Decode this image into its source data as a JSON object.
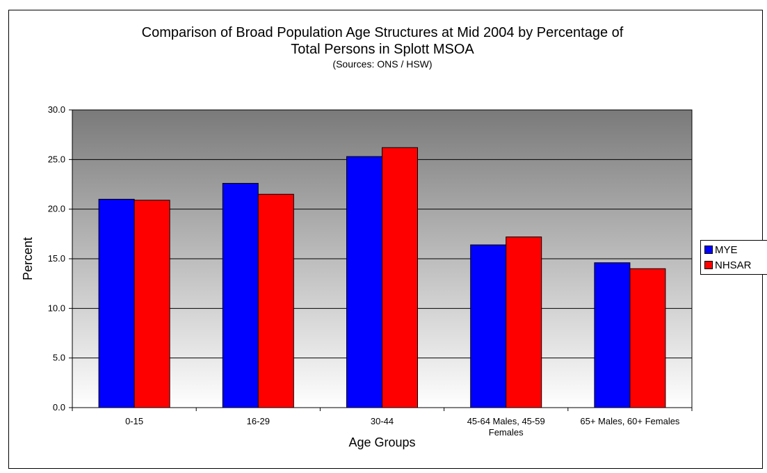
{
  "chart_data": {
    "type": "bar",
    "title": "Comparison of Broad Population Age Structures at Mid 2004 by Percentage of",
    "title_line2": "Total Persons in Splott MSOA",
    "subtitle": "(Sources: ONS / HSW)",
    "xlabel": "Age Groups",
    "ylabel": "Percent",
    "ylim": [
      0,
      30
    ],
    "yticks": [
      "0.0",
      "5.0",
      "10.0",
      "15.0",
      "20.0",
      "25.0",
      "30.0"
    ],
    "categories": [
      [
        "0-15"
      ],
      [
        "16-29"
      ],
      [
        "30-44"
      ],
      [
        "45-64 Males, 45-59",
        "Females"
      ],
      [
        "65+ Males, 60+ Females"
      ]
    ],
    "series": [
      {
        "name": "MYE",
        "color": "#0000ff",
        "values": [
          21.0,
          22.6,
          25.3,
          16.4,
          14.6
        ]
      },
      {
        "name": "NHSAR",
        "color": "#ff0000",
        "values": [
          20.9,
          21.5,
          26.2,
          17.2,
          14.0
        ]
      }
    ],
    "grid": true,
    "legend": "right"
  }
}
